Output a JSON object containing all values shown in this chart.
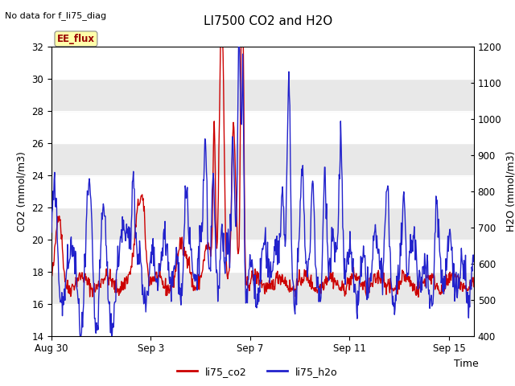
{
  "title": "LI7500 CO2 and H2O",
  "subtitle": "No data for f_li75_diag",
  "xlabel": "Time",
  "ylabel_left": "CO2 (mmol/m3)",
  "ylabel_right": "H2O (mmol/m3)",
  "ylim_left": [
    14,
    32
  ],
  "ylim_right": [
    400,
    1200
  ],
  "yticks_left": [
    14,
    16,
    18,
    20,
    22,
    24,
    26,
    28,
    30,
    32
  ],
  "yticks_right": [
    400,
    500,
    600,
    700,
    800,
    900,
    1000,
    1100,
    1200
  ],
  "xtick_labels": [
    "Aug 30",
    "Sep 3",
    "Sep 7",
    "Sep 11",
    "Sep 15"
  ],
  "xtick_positions": [
    0,
    4,
    8,
    12,
    16
  ],
  "legend_labels": [
    "li75_co2",
    "li75_h2o"
  ],
  "legend_colors": [
    "#cc0000",
    "#2222cc"
  ],
  "co2_color": "#cc0000",
  "h2o_color": "#2222cc",
  "bg_color": "#ffffff",
  "plot_bg_white": "#ffffff",
  "plot_bg_gray": "#e8e8e8",
  "ee_flux_box_color": "#ffffaa",
  "ee_flux_text_color": "#990000",
  "annotation_text": "EE_flux",
  "total_days": 17
}
